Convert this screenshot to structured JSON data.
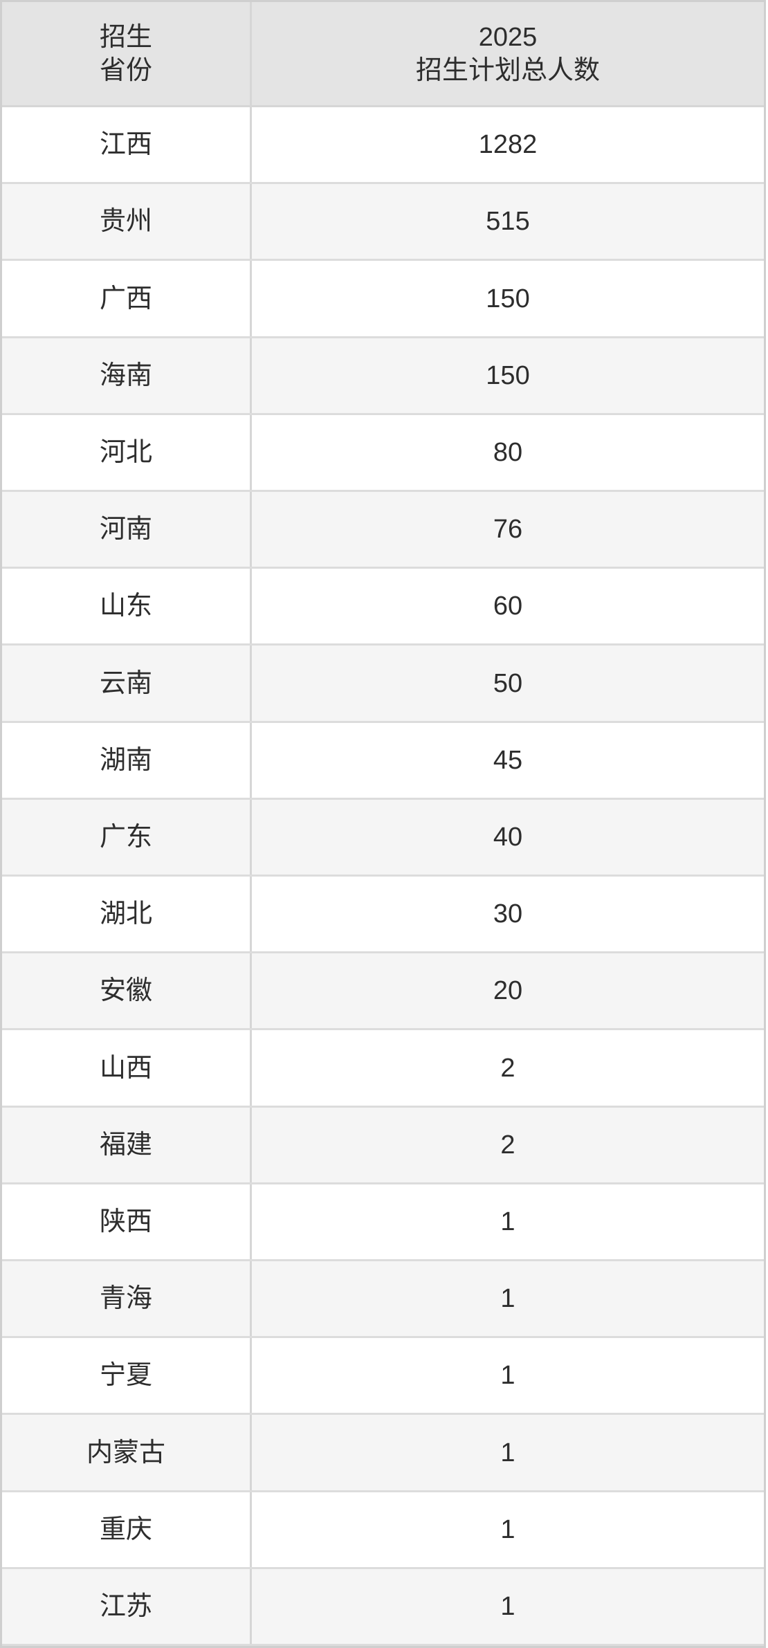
{
  "table": {
    "header": {
      "province_line1": "招生",
      "province_line2": "省份",
      "total_line1": "2025",
      "total_line2": "招生计划总人数"
    },
    "rows": [
      {
        "province": "江西",
        "total": "1282"
      },
      {
        "province": "贵州",
        "total": "515"
      },
      {
        "province": "广西",
        "total": "150"
      },
      {
        "province": "海南",
        "total": "150"
      },
      {
        "province": "河北",
        "total": "80"
      },
      {
        "province": "河南",
        "total": "76"
      },
      {
        "province": "山东",
        "total": "60"
      },
      {
        "province": "云南",
        "total": "50"
      },
      {
        "province": "湖南",
        "total": "45"
      },
      {
        "province": "广东",
        "total": "40"
      },
      {
        "province": "湖北",
        "total": "30"
      },
      {
        "province": "安徽",
        "total": "20"
      },
      {
        "province": "山西",
        "total": "2"
      },
      {
        "province": "福建",
        "total": "2"
      },
      {
        "province": "陕西",
        "total": "1"
      },
      {
        "province": "青海",
        "total": "1"
      },
      {
        "province": "宁夏",
        "total": "1"
      },
      {
        "province": "内蒙古",
        "total": "1"
      },
      {
        "province": "重庆",
        "total": "1"
      },
      {
        "province": "江苏",
        "total": "1"
      }
    ]
  },
  "colors": {
    "header_bg": "#e4e4e4",
    "row_bg": "#ffffff",
    "row_alt_bg": "#f5f5f5",
    "border": "#dcdcdc",
    "outer_border": "#cfcfcf",
    "divider": "#d6d6d6",
    "text": "#2d2d2d",
    "page_bg": "#ffffff"
  },
  "chart_data": {
    "type": "table",
    "title": "2025招生计划",
    "columns": [
      "招生省份",
      "2025招生计划总人数"
    ],
    "categories": [
      "江西",
      "贵州",
      "广西",
      "海南",
      "河北",
      "河南",
      "山东",
      "云南",
      "湖南",
      "广东",
      "湖北",
      "安徽",
      "山西",
      "福建",
      "陕西",
      "青海",
      "宁夏",
      "内蒙古",
      "重庆",
      "江苏"
    ],
    "values": [
      1282,
      515,
      150,
      150,
      80,
      76,
      60,
      50,
      45,
      40,
      30,
      20,
      2,
      2,
      1,
      1,
      1,
      1,
      1,
      1
    ],
    "layout": {
      "header_shaded": true,
      "zebra_striping": true,
      "grid": true
    }
  }
}
